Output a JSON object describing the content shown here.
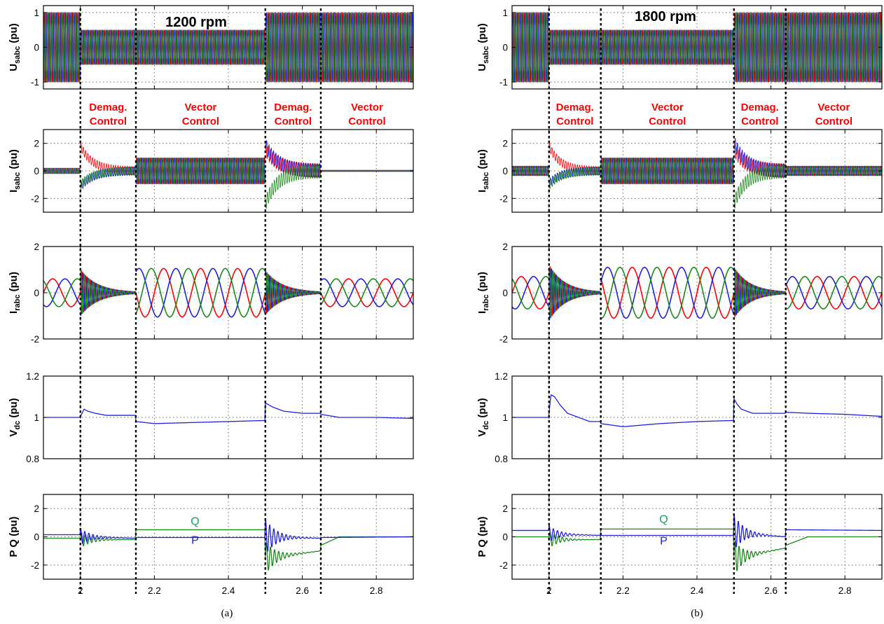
{
  "colors": {
    "phase_a": "#ff0000",
    "phase_b": "#2020dd",
    "phase_c": "#1a8a1a",
    "signal_blue": "#2020dd",
    "signal_green": "#1a8a1a",
    "label_Q": "#1aa060",
    "label_P": "#2020dd",
    "mode_text": "#ff0000"
  },
  "chart_data": [
    {
      "type": "line",
      "panel": "a",
      "caption": "(a)",
      "title": "1200 rpm",
      "xlim": [
        1.9,
        2.9
      ],
      "x_ticks": [
        "2",
        "2.2",
        "2.4",
        "2.6",
        "2.8"
      ],
      "events_x": [
        2.0,
        2.15,
        2.5,
        2.65
      ],
      "mode_labels": [
        {
          "line1": "Demag.",
          "line2": "Control",
          "x_center": 2.075
        },
        {
          "line1": "Vector",
          "line2": "Control",
          "x_center": 2.325
        },
        {
          "line1": "Demag.",
          "line2": "Control",
          "x_center": 2.575
        },
        {
          "line1": "Vector",
          "line2": "Control",
          "x_center": 2.775
        }
      ],
      "subplots": [
        {
          "ylabel": "U",
          "ylabel_sub": "sabc",
          "ylabel_unit": "(pu)",
          "ylim": [
            -1.2,
            1.2
          ],
          "y_ticks": [
            "-1",
            "0",
            "1"
          ],
          "series": [
            {
              "kind": "three_phase",
              "name": "",
              "segments": [
                {
                  "x": [
                    1.9,
                    2.0
                  ],
                  "amplitude": 1.0
                },
                {
                  "x": [
                    2.0,
                    2.5
                  ],
                  "amplitude": 0.5
                },
                {
                  "x": [
                    2.5,
                    2.9
                  ],
                  "amplitude": 1.0
                }
              ]
            }
          ]
        },
        {
          "ylabel": "I",
          "ylabel_sub": "sabc",
          "ylabel_unit": "(pu)",
          "ylim": [
            -3,
            3
          ],
          "y_ticks": [
            "-2",
            "0",
            "2"
          ],
          "series": [
            {
              "kind": "three_phase",
              "name": "",
              "segments": [
                {
                  "x": [
                    1.9,
                    2.0
                  ],
                  "amplitude": 0.2
                },
                {
                  "x": [
                    2.0,
                    2.15
                  ],
                  "amplitude": 0.3,
                  "transient": [
                    1.8,
                    -1.2,
                    -1.0
                  ]
                },
                {
                  "x": [
                    2.15,
                    2.5
                  ],
                  "amplitude": 0.95
                },
                {
                  "x": [
                    2.5,
                    2.65
                  ],
                  "amplitude": 0.5,
                  "transient": [
                    1.6,
                    1.9,
                    -2.4
                  ]
                },
                {
                  "x": [
                    2.65,
                    2.9
                  ],
                  "amplitude": 0.05
                }
              ]
            }
          ]
        },
        {
          "ylabel": "I",
          "ylabel_sub": "rabc",
          "ylabel_unit": "(pu)",
          "ylim": [
            -2,
            2
          ],
          "y_ticks": [
            "-2",
            "0",
            "2"
          ],
          "series": [
            {
              "kind": "three_phase",
              "name": "",
              "segments": [
                {
                  "x": [
                    1.9,
                    2.0
                  ],
                  "amplitude": 0.6
                },
                {
                  "x": [
                    2.0,
                    2.15
                  ],
                  "amplitude": 1.0,
                  "decaying": true
                },
                {
                  "x": [
                    2.15,
                    2.5
                  ],
                  "amplitude": 1.05
                },
                {
                  "x": [
                    2.5,
                    2.65
                  ],
                  "amplitude": 0.95,
                  "decaying": true
                },
                {
                  "x": [
                    2.65,
                    2.9
                  ],
                  "amplitude": 0.6
                }
              ]
            }
          ]
        },
        {
          "ylabel": "V",
          "ylabel_sub": "dc",
          "ylabel_unit": "(pu)",
          "ylim": [
            0.8,
            1.2
          ],
          "y_ticks": [
            "0.8",
            "1",
            "1.2"
          ],
          "series": [
            {
              "kind": "line",
              "name": "",
              "color_key": "signal_blue",
              "x": [
                1.9,
                1.999,
                2.01,
                2.02,
                2.04,
                2.07,
                2.1,
                2.149,
                2.15,
                2.2,
                2.3,
                2.4,
                2.499,
                2.5,
                2.51,
                2.52,
                2.55,
                2.6,
                2.649,
                2.65,
                2.7,
                2.8,
                2.9
              ],
              "y": [
                1.0,
                1.0,
                1.04,
                1.03,
                1.02,
                1.01,
                1.01,
                1.01,
                0.98,
                0.97,
                0.975,
                0.98,
                0.985,
                1.07,
                1.06,
                1.05,
                1.03,
                1.02,
                1.02,
                1.015,
                1.0,
                1.0,
                0.995
              ]
            }
          ]
        },
        {
          "ylabel": "P Q",
          "ylabel_sub": "",
          "ylabel_unit": "(pu)",
          "ylim": [
            -3,
            3
          ],
          "y_ticks": [
            "-2",
            "0",
            "2"
          ],
          "series": [
            {
              "kind": "line",
              "name": "Q",
              "color_key": "signal_green",
              "x": [
                1.9,
                1.999,
                2.0,
                2.149,
                2.15,
                2.499,
                2.5,
                2.649,
                2.65,
                2.7,
                2.9
              ],
              "y": [
                -0.1,
                -0.1,
                -0.2,
                -0.2,
                0.5,
                0.5,
                -1.5,
                -1.0,
                -0.6,
                0.0,
                0.0
              ],
              "oscillation": [
                {
                  "x": [
                    2.0,
                    2.15
                  ],
                  "amp": 0.6
                },
                {
                  "x": [
                    2.5,
                    2.65
                  ],
                  "amp": 1.2
                }
              ]
            },
            {
              "kind": "line",
              "name": "P",
              "color_key": "signal_blue",
              "x": [
                1.9,
                1.999,
                2.0,
                2.149,
                2.15,
                2.499,
                2.5,
                2.649,
                2.65,
                2.9
              ],
              "y": [
                0.15,
                0.15,
                0.0,
                -0.1,
                -0.05,
                -0.05,
                0.0,
                -0.1,
                -0.05,
                0.0
              ],
              "oscillation": [
                {
                  "x": [
                    2.0,
                    2.15
                  ],
                  "amp": 0.6
                },
                {
                  "x": [
                    2.5,
                    2.65
                  ],
                  "amp": 1.3
                }
              ]
            }
          ],
          "annotations": [
            {
              "text": "Q",
              "x": 2.31,
              "y": 0.85,
              "color_key": "label_Q"
            },
            {
              "text": "P",
              "x": 2.31,
              "y": -0.5,
              "color_key": "label_P"
            }
          ]
        }
      ]
    },
    {
      "type": "line",
      "panel": "b",
      "caption": "(b)",
      "title": "1800 rpm",
      "xlim": [
        1.9,
        2.9
      ],
      "x_ticks": [
        "2",
        "2.2",
        "2.4",
        "2.6",
        "2.8"
      ],
      "events_x": [
        2.0,
        2.14,
        2.5,
        2.64
      ],
      "mode_labels": [
        {
          "line1": "Demag.",
          "line2": "Control",
          "x_center": 2.07
        },
        {
          "line1": "Vector",
          "line2": "Control",
          "x_center": 2.32
        },
        {
          "line1": "Demag.",
          "line2": "Control",
          "x_center": 2.57
        },
        {
          "line1": "Vector",
          "line2": "Control",
          "x_center": 2.77
        }
      ],
      "subplots": [
        {
          "ylabel": "U",
          "ylabel_sub": "sabc",
          "ylabel_unit": "(pu)",
          "ylim": [
            -1.2,
            1.2
          ],
          "y_ticks": [
            "-1",
            "0",
            "1"
          ],
          "series": [
            {
              "kind": "three_phase",
              "name": "",
              "segments": [
                {
                  "x": [
                    1.9,
                    2.0
                  ],
                  "amplitude": 1.0
                },
                {
                  "x": [
                    2.0,
                    2.5
                  ],
                  "amplitude": 0.5
                },
                {
                  "x": [
                    2.5,
                    2.9
                  ],
                  "amplitude": 1.0
                }
              ]
            }
          ]
        },
        {
          "ylabel": "I",
          "ylabel_sub": "sabc",
          "ylabel_unit": "(pu)",
          "ylim": [
            -3,
            3
          ],
          "y_ticks": [
            "-2",
            "0",
            "2"
          ],
          "series": [
            {
              "kind": "three_phase",
              "name": "",
              "segments": [
                {
                  "x": [
                    1.9,
                    2.0
                  ],
                  "amplitude": 0.35
                },
                {
                  "x": [
                    2.0,
                    2.14
                  ],
                  "amplitude": 0.3,
                  "transient": [
                    1.8,
                    -0.9,
                    -1.1
                  ]
                },
                {
                  "x": [
                    2.14,
                    2.5
                  ],
                  "amplitude": 0.95
                },
                {
                  "x": [
                    2.5,
                    2.64
                  ],
                  "amplitude": 0.5,
                  "transient": [
                    1.6,
                    2.1,
                    -2.4
                  ]
                },
                {
                  "x": [
                    2.64,
                    2.9
                  ],
                  "amplitude": 0.35
                }
              ]
            }
          ]
        },
        {
          "ylabel": "I",
          "ylabel_sub": "rabc",
          "ylabel_unit": "(pu)",
          "ylim": [
            -2,
            2
          ],
          "y_ticks": [
            "-2",
            "0",
            "2"
          ],
          "series": [
            {
              "kind": "three_phase",
              "name": "",
              "segments": [
                {
                  "x": [
                    1.9,
                    2.0
                  ],
                  "amplitude": 0.7
                },
                {
                  "x": [
                    2.0,
                    2.14
                  ],
                  "amplitude": 1.2,
                  "decaying": true
                },
                {
                  "x": [
                    2.14,
                    2.5
                  ],
                  "amplitude": 1.1
                },
                {
                  "x": [
                    2.5,
                    2.64
                  ],
                  "amplitude": 1.1,
                  "decaying": true
                },
                {
                  "x": [
                    2.64,
                    2.9
                  ],
                  "amplitude": 0.7
                }
              ]
            }
          ]
        },
        {
          "ylabel": "V",
          "ylabel_sub": "dc",
          "ylabel_unit": "(pu)",
          "ylim": [
            0.8,
            1.2
          ],
          "y_ticks": [
            "0.8",
            "1",
            "1.2"
          ],
          "series": [
            {
              "kind": "line",
              "name": "",
              "color_key": "signal_blue",
              "x": [
                1.9,
                1.999,
                2.005,
                2.015,
                2.03,
                2.05,
                2.08,
                2.11,
                2.139,
                2.14,
                2.2,
                2.3,
                2.4,
                2.499,
                2.5,
                2.51,
                2.52,
                2.55,
                2.6,
                2.639,
                2.64,
                2.7,
                2.8,
                2.9
              ],
              "y": [
                1.0,
                1.0,
                1.11,
                1.1,
                1.06,
                1.02,
                1.0,
                0.98,
                0.98,
                0.97,
                0.955,
                0.97,
                0.98,
                0.985,
                1.09,
                1.06,
                1.04,
                1.02,
                1.02,
                1.02,
                1.025,
                1.02,
                1.015,
                1.005
              ]
            }
          ]
        },
        {
          "ylabel": "P Q",
          "ylabel_sub": "",
          "ylabel_unit": "(pu)",
          "ylim": [
            -3,
            3
          ],
          "y_ticks": [
            "-2",
            "0",
            "2"
          ],
          "series": [
            {
              "kind": "line",
              "name": "Q",
              "color_key": "signal_green",
              "x": [
                1.9,
                1.999,
                2.0,
                2.139,
                2.14,
                2.499,
                2.5,
                2.639,
                2.64,
                2.7,
                2.9
              ],
              "y": [
                0.0,
                0.0,
                -0.2,
                -0.2,
                0.55,
                0.55,
                -1.5,
                -0.8,
                -0.6,
                0.0,
                0.0
              ],
              "oscillation": [
                {
                  "x": [
                    2.0,
                    2.14
                  ],
                  "amp": 0.6
                },
                {
                  "x": [
                    2.5,
                    2.64
                  ],
                  "amp": 1.3
                }
              ]
            },
            {
              "kind": "line",
              "name": "P",
              "color_key": "signal_blue",
              "x": [
                1.9,
                1.999,
                2.0,
                2.139,
                2.14,
                2.499,
                2.5,
                2.639,
                2.64,
                2.9
              ],
              "y": [
                0.45,
                0.45,
                0.2,
                0.1,
                0.1,
                0.1,
                0.3,
                0.0,
                0.5,
                0.45
              ],
              "oscillation": [
                {
                  "x": [
                    2.0,
                    2.14
                  ],
                  "amp": 0.6
                },
                {
                  "x": [
                    2.5,
                    2.64
                  ],
                  "amp": 1.3
                }
              ]
            }
          ],
          "annotations": [
            {
              "text": "Q",
              "x": 2.31,
              "y": 1.0,
              "color_key": "label_Q"
            },
            {
              "text": "P",
              "x": 2.31,
              "y": -0.55,
              "color_key": "label_P"
            }
          ]
        }
      ]
    }
  ]
}
